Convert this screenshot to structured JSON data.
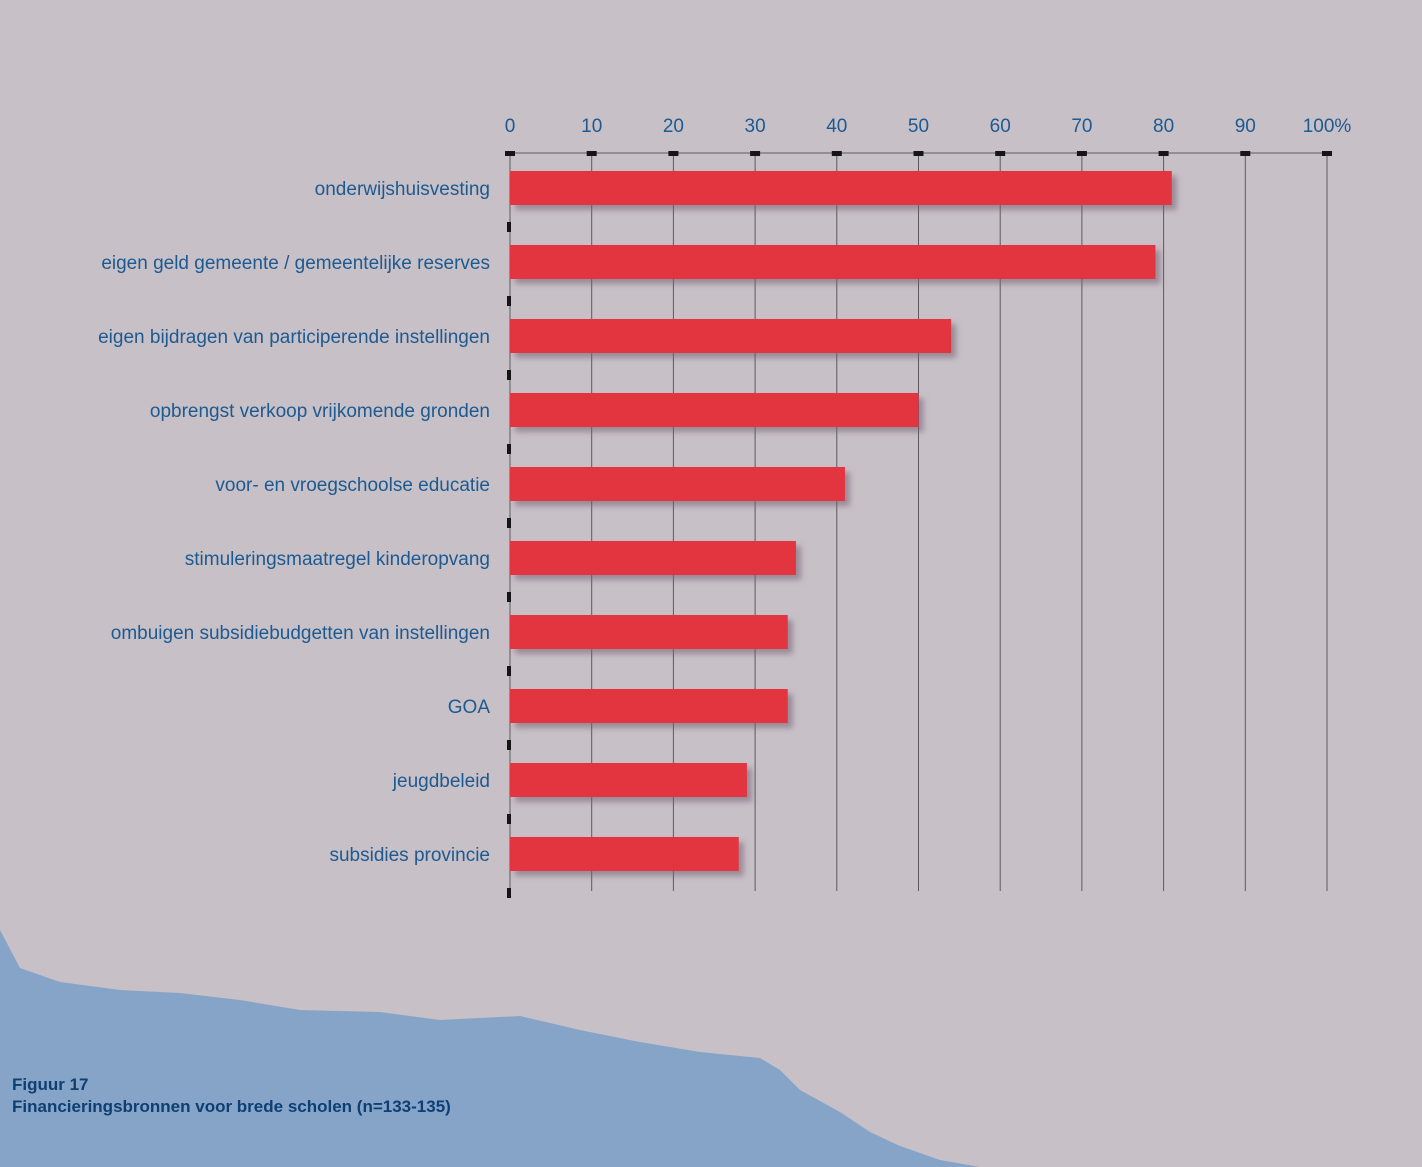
{
  "colors": {
    "background": "#c8c0c7",
    "bar": "#e23440",
    "label_text": "#1c5a91",
    "grid": "#5b5b5b",
    "caption_text": "#0e3f73",
    "wave": "#86a4c8"
  },
  "caption": {
    "figure_number": "Figuur 17",
    "title": "Financieringsbronnen voor brede scholen (n=133-135)"
  },
  "chart_data": {
    "type": "bar",
    "orientation": "horizontal",
    "title": "",
    "xlabel": "",
    "ylabel": "",
    "xlim": [
      0,
      100
    ],
    "x_ticks": [
      "0",
      "10",
      "20",
      "30",
      "40",
      "50",
      "60",
      "70",
      "80",
      "90",
      "100%"
    ],
    "grid": true,
    "categories": [
      "onderwijshuisvesting",
      "eigen geld gemeente / gemeentelijke reserves",
      "eigen bijdragen van participerende instellingen",
      "opbrengst verkoop vrijkomende gronden",
      "voor- en vroegschoolse educatie",
      "stimuleringsmaatregel kinderopvang",
      "ombuigen subsidiebudgetten van instellingen",
      "GOA",
      "jeugdbeleid",
      "subsidies provincie"
    ],
    "values": [
      81,
      79,
      54,
      50,
      41,
      35,
      34,
      34,
      29,
      28
    ]
  }
}
